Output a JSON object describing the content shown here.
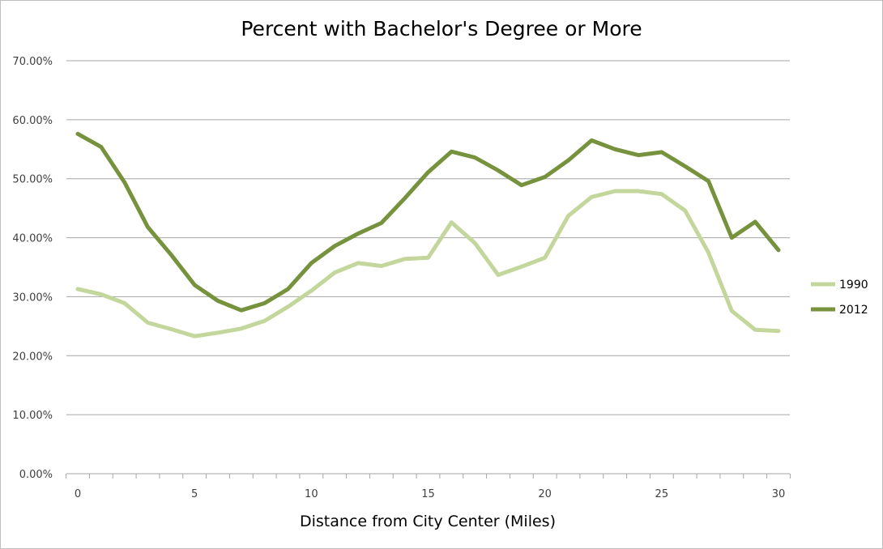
{
  "chart_data": {
    "type": "line",
    "title": "Percent with Bachelor's Degree or More",
    "xlabel": "Distance from City Center (Miles)",
    "ylabel": "",
    "xlim": [
      0,
      30
    ],
    "ylim": [
      0,
      0.7
    ],
    "x_ticks": [
      "0",
      "5",
      "10",
      "15",
      "20",
      "25",
      "30"
    ],
    "y_ticks": [
      "0.00%",
      "10.00%",
      "20.00%",
      "30.00%",
      "40.00%",
      "50.00%",
      "60.00%",
      "70.00%"
    ],
    "grid": "horizontal",
    "legend_position": "right",
    "x": [
      0,
      1,
      2,
      3,
      4,
      5,
      6,
      7,
      8,
      9,
      10,
      11,
      12,
      13,
      14,
      15,
      16,
      17,
      18,
      19,
      20,
      21,
      22,
      23,
      24,
      25,
      26,
      27,
      28,
      29,
      30
    ],
    "series": [
      {
        "name": "1990",
        "color": "#c3d69b",
        "values": [
          0.313,
          0.304,
          0.289,
          0.256,
          0.245,
          0.233,
          0.239,
          0.246,
          0.259,
          0.283,
          0.31,
          0.341,
          0.357,
          0.352,
          0.364,
          0.366,
          0.426,
          0.391,
          0.337,
          0.351,
          0.366,
          0.437,
          0.469,
          0.479,
          0.479,
          0.474,
          0.446,
          0.375,
          0.276,
          0.244,
          0.242
        ]
      },
      {
        "name": "2012",
        "color": "#76923c",
        "values": [
          0.576,
          0.554,
          0.494,
          0.418,
          0.371,
          0.32,
          0.293,
          0.277,
          0.289,
          0.313,
          0.357,
          0.386,
          0.407,
          0.425,
          0.467,
          0.511,
          0.546,
          0.536,
          0.514,
          0.489,
          0.503,
          0.531,
          0.565,
          0.55,
          0.54,
          0.545,
          0.521,
          0.496,
          0.4,
          0.427,
          0.379
        ]
      }
    ]
  }
}
